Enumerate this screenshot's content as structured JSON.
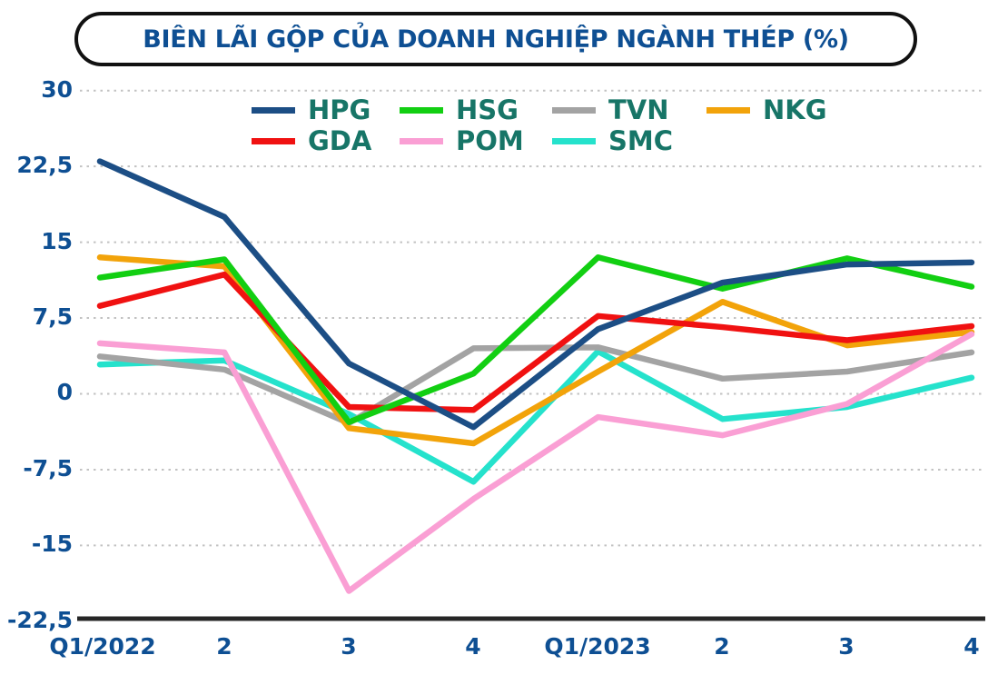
{
  "chart_data": {
    "type": "line",
    "title": "BIÊN LÃI GỘP CỦA DOANH NGHIỆP NGÀNH THÉP (%)",
    "xlabel": "",
    "ylabel": "",
    "categories": [
      "Q1/2022",
      "2",
      "3",
      "4",
      "Q1/2023",
      "2",
      "3",
      "4"
    ],
    "series": [
      {
        "name": "HPG",
        "color": "#1c4e85",
        "values": [
          23,
          17.5,
          3,
          -3.3,
          6.4,
          11,
          12.8,
          13
        ]
      },
      {
        "name": "HSG",
        "color": "#12cf12",
        "values": [
          11.5,
          13.3,
          -2.8,
          2,
          13.5,
          10.4,
          13.4,
          10.6
        ]
      },
      {
        "name": "TVN",
        "color": "#a3a3a3",
        "values": [
          3.7,
          2.4,
          -2.9,
          4.5,
          4.6,
          1.5,
          2.2,
          4.1
        ]
      },
      {
        "name": "NKG",
        "color": "#f2a30a",
        "values": [
          13.5,
          12.6,
          -3.4,
          -4.9,
          2.2,
          9.1,
          4.8,
          6.1
        ]
      },
      {
        "name": "GDA",
        "color": "#f01111",
        "values": [
          8.7,
          11.8,
          -1.3,
          -1.6,
          7.7,
          6.6,
          5.3,
          6.7
        ]
      },
      {
        "name": "POM",
        "color": "#fa9fd4",
        "values": [
          5,
          4.1,
          -19.5,
          -10.4,
          -2.3,
          -4.1,
          -1,
          5.9
        ]
      },
      {
        "name": "SMC",
        "color": "#25e2cc",
        "values": [
          2.9,
          3.3,
          -2,
          -8.7,
          4.2,
          -2.5,
          -1.3,
          1.6
        ]
      }
    ],
    "y_ticks": [
      "30",
      "22,5",
      "15",
      "7,5",
      "0",
      "-7,5",
      "-15",
      "-22,5"
    ],
    "y_tick_values": [
      30,
      22.5,
      15,
      7.5,
      0,
      -7.5,
      -15,
      -22.5
    ],
    "ylim": [
      -22.5,
      30
    ],
    "grid": "horizontal dotted",
    "legend_position": "top",
    "legend_rows": [
      [
        "HPG",
        "HSG",
        "TVN",
        "NKG"
      ],
      [
        "GDA",
        "POM",
        "SMC"
      ]
    ]
  },
  "colors": {
    "title_text": "#0e4f93",
    "axis_label_text": "#0e4f93",
    "legend_text": "#177567",
    "gridline": "#c2c2c2",
    "axis_line": "#262626",
    "title_border": "#111111",
    "background": "#ffffff"
  }
}
